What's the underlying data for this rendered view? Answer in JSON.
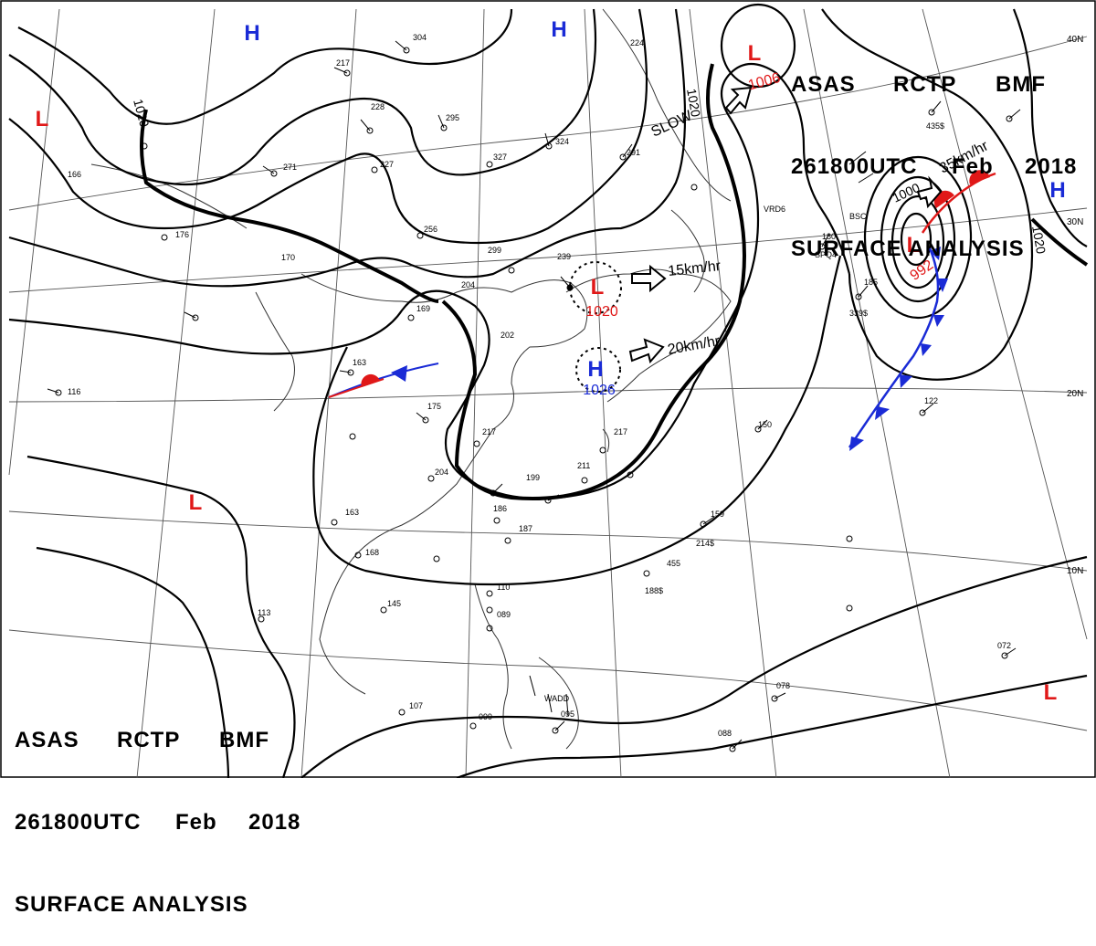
{
  "header": {
    "line1": [
      "ASAS",
      "RCTP",
      "BMF"
    ],
    "line2": [
      "261800UTC",
      "Feb",
      "2018"
    ],
    "line3": "SURFACE ANALYSIS"
  },
  "lat_labels": [
    "40N",
    "30N",
    "20N",
    "10N"
  ],
  "pressure_centers": [
    {
      "type": "H",
      "color": "#1a2bd6"
    },
    {
      "type": "H",
      "color": "#1a2bd6"
    },
    {
      "type": "H",
      "color": "#1a2bd6"
    },
    {
      "type": "H",
      "color": "#1a2bd6",
      "value": "1026"
    },
    {
      "type": "L",
      "color": "#e01818",
      "value": "1006"
    },
    {
      "type": "L",
      "color": "#e01818"
    },
    {
      "type": "L",
      "color": "#e01818",
      "value": "1020"
    },
    {
      "type": "L",
      "color": "#e01818",
      "value": "992"
    },
    {
      "type": "L",
      "color": "#e01818"
    },
    {
      "type": "L",
      "color": "#e01818"
    }
  ],
  "isobar_labels": [
    "1020",
    "1020",
    "1020",
    "1000",
    "1020"
  ],
  "motion_labels": [
    "15km/hr",
    "20km/hr",
    "35km/hr",
    "SLOW"
  ],
  "station_labels": [
    "304",
    "217",
    "228",
    "295",
    "324",
    "327",
    "271",
    "227",
    "291",
    "224",
    "256",
    "299",
    "239",
    "204",
    "169",
    "170",
    "176",
    "166",
    "163",
    "116",
    "175",
    "217",
    "202",
    "204",
    "199",
    "186",
    "187",
    "163",
    "168",
    "113",
    "145",
    "110",
    "089",
    "107",
    "099",
    "095",
    "088",
    "078",
    "072",
    "159",
    "217",
    "211",
    "122",
    "150",
    "180",
    "185",
    "455",
    "188$",
    "214$",
    "339$",
    "435$",
    "VRD6",
    "WADD",
    "SPQ4",
    "BSC"
  ]
}
